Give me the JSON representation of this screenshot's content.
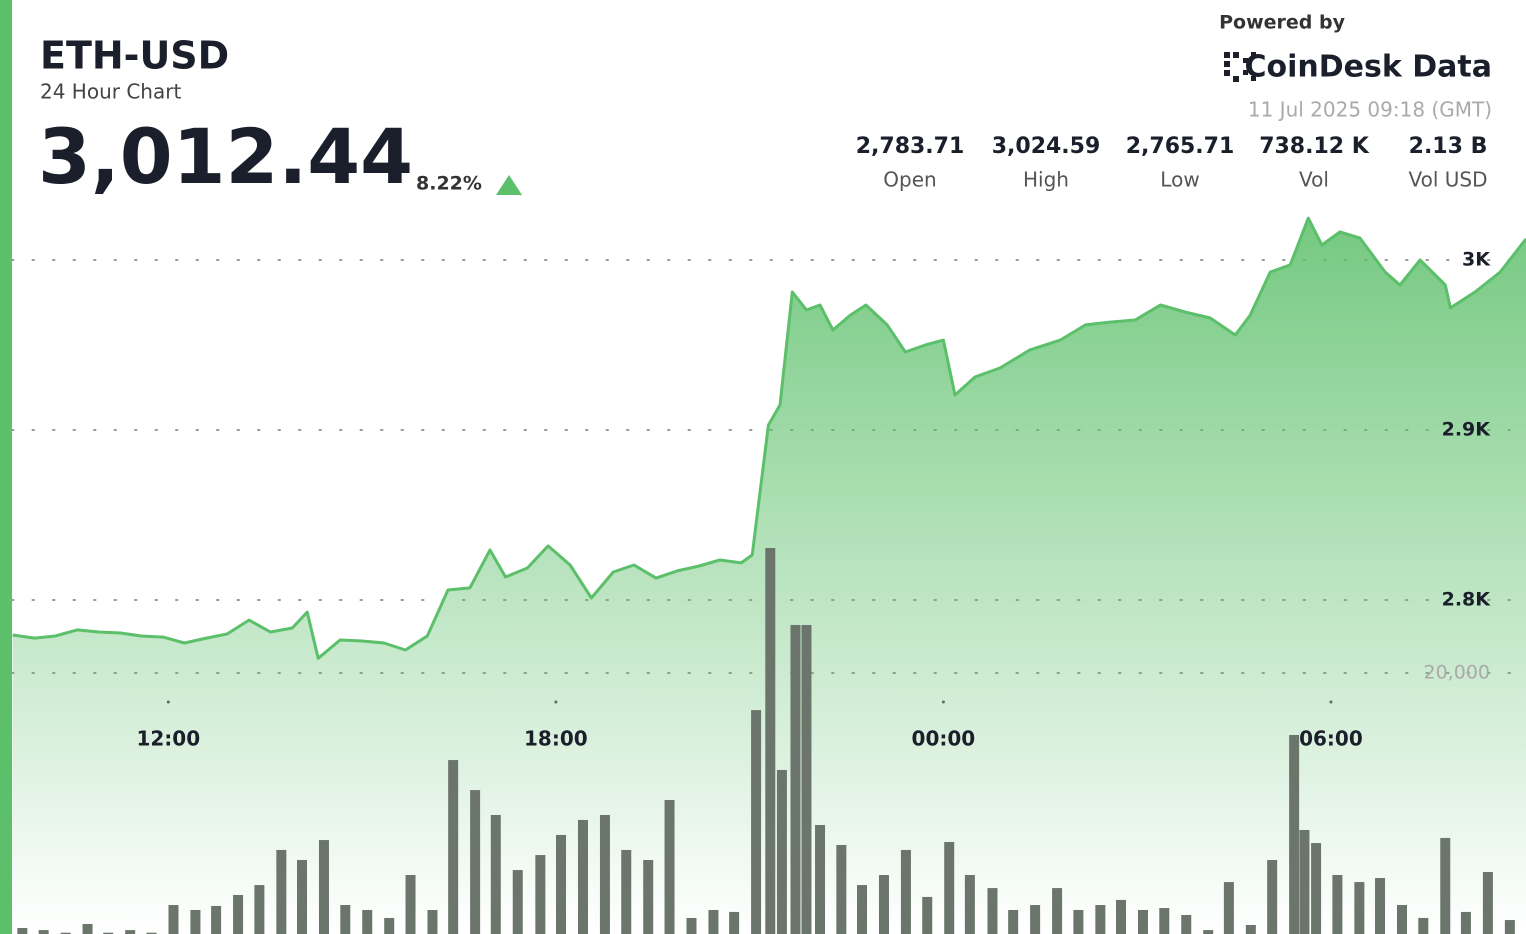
{
  "chart_data": {
    "type": "area",
    "title": "ETH-USD",
    "subtitle": "24 Hour Chart",
    "price": "3,012.44",
    "change": "8.22%",
    "powered_by": "Powered by",
    "brand": "CoinDesk Data",
    "timestamp": "11 Jul 2025 09:18 (GMT)",
    "stats": [
      {
        "value": "2,783.71",
        "label": "Open"
      },
      {
        "value": "3,024.59",
        "label": "High"
      },
      {
        "value": "2,765.71",
        "label": "Low"
      },
      {
        "value": "738.12 K",
        "label": "Vol"
      },
      {
        "value": "2.13 B",
        "label": "Vol USD"
      }
    ],
    "xlim": [
      9.58,
      33.02
    ],
    "xticks": [
      {
        "value": 12,
        "label": "12:00"
      },
      {
        "value": 18,
        "label": "18:00"
      },
      {
        "value": 24,
        "label": "00:00"
      },
      {
        "value": 30,
        "label": "06:00"
      }
    ],
    "ylim": [
      2605,
      3030
    ],
    "yticks": [
      {
        "value": 2800,
        "label": "2.8K"
      },
      {
        "value": 2900,
        "label": "2.9K"
      },
      {
        "value": 3000,
        "label": "3K"
      }
    ],
    "y2lim": [
      0,
      30000
    ],
    "y2ticks": [
      {
        "value": 20000,
        "label": "20,000"
      }
    ],
    "grid": true,
    "series": [
      {
        "color": "#5cbf6a",
        "x": [
          9.59,
          9.93,
          10.25,
          10.59,
          10.92,
          11.26,
          11.58,
          11.92,
          12.25,
          12.59,
          12.91,
          13.25,
          13.58,
          13.92,
          14.15,
          14.32,
          14.66,
          15.0,
          15.34,
          15.67,
          16.01,
          16.33,
          16.67,
          16.98,
          17.22,
          17.56,
          17.88,
          18.22,
          18.55,
          18.89,
          19.21,
          19.55,
          19.88,
          20.22,
          20.54,
          20.87,
          21.04,
          21.29,
          21.47,
          21.66,
          21.88,
          22.09,
          22.29,
          22.56,
          22.8,
          23.13,
          23.41,
          23.72,
          24.0,
          24.18,
          24.49,
          24.88,
          25.34,
          25.81,
          26.2,
          26.58,
          26.97,
          27.36,
          27.74,
          28.13,
          28.52,
          28.75,
          29.06,
          29.37,
          29.65,
          29.86,
          30.14,
          30.45,
          30.84,
          31.07,
          31.38,
          31.77,
          31.85,
          32.23,
          32.62,
          33.02
        ],
        "values": [
          2779.4,
          2777.6,
          2778.8,
          2782.4,
          2781.2,
          2780.6,
          2778.8,
          2778.2,
          2774.7,
          2777.6,
          2780.0,
          2788.2,
          2781.2,
          2783.5,
          2792.9,
          2765.7,
          2776.5,
          2775.9,
          2774.7,
          2770.6,
          2778.8,
          2805.9,
          2807.1,
          2829.4,
          2813.5,
          2818.8,
          2831.8,
          2820.6,
          2801.2,
          2816.5,
          2820.6,
          2812.9,
          2817.1,
          2820.0,
          2823.5,
          2821.8,
          2826.5,
          2902.9,
          2914.7,
          2981.2,
          2970.6,
          2973.5,
          2958.8,
          2967.6,
          2973.5,
          2961.8,
          2945.9,
          2950.0,
          2952.9,
          2920.6,
          2931.2,
          2936.5,
          2947.1,
          2952.9,
          2961.8,
          2963.5,
          2964.7,
          2973.5,
          2969.4,
          2965.9,
          2955.9,
          2967.6,
          2992.9,
          2997.1,
          3024.6,
          3008.8,
          3016.5,
          3012.9,
          2992.9,
          2985.3,
          3000.0,
          2985.3,
          2971.8,
          2981.2,
          2992.9,
          3012.4
        ]
      },
      {
        "color": "#6b756b",
        "axis": "y2",
        "x": [
          9.74,
          10.07,
          10.41,
          10.75,
          11.07,
          11.41,
          11.74,
          12.08,
          12.42,
          12.74,
          13.08,
          13.41,
          13.75,
          14.07,
          14.41,
          14.74,
          15.08,
          15.42,
          15.75,
          16.09,
          16.41,
          16.75,
          17.07,
          17.41,
          17.76,
          18.08,
          18.42,
          18.76,
          19.09,
          19.43,
          19.76,
          20.1,
          20.44,
          20.76,
          21.1,
          21.32,
          21.5,
          21.71,
          21.88,
          22.09,
          22.42,
          22.74,
          23.08,
          23.42,
          23.75,
          24.09,
          24.41,
          24.76,
          25.08,
          25.42,
          25.76,
          26.09,
          26.43,
          26.75,
          27.09,
          27.42,
          27.76,
          28.1,
          28.42,
          28.76,
          29.09,
          29.43,
          29.59,
          29.77,
          30.1,
          30.44,
          30.76,
          31.1,
          31.43,
          31.77,
          32.09,
          32.43,
          32.77
        ],
        "values": [
          460,
          300,
          100,
          770,
          100,
          300,
          100,
          2220,
          1840,
          2150,
          2990,
          3750,
          6440,
          5670,
          7200,
          2220,
          1840,
          1230,
          4520,
          1840,
          13330,
          11030,
          9120,
          4900,
          6050,
          7590,
          8740,
          9120,
          6440,
          5670,
          10270,
          1230,
          1840,
          1690,
          17160,
          29580,
          12570,
          23680,
          23680,
          8350,
          6820,
          3750,
          4520,
          6440,
          2840,
          7050,
          4520,
          3520,
          1840,
          2220,
          3520,
          1840,
          2220,
          2610,
          1840,
          1990,
          1460,
          300,
          3980,
          690,
          5670,
          15250,
          7970,
          6970,
          4520,
          3980,
          4290,
          2220,
          1230,
          7360,
          1690,
          4750,
          1070
        ]
      }
    ]
  }
}
